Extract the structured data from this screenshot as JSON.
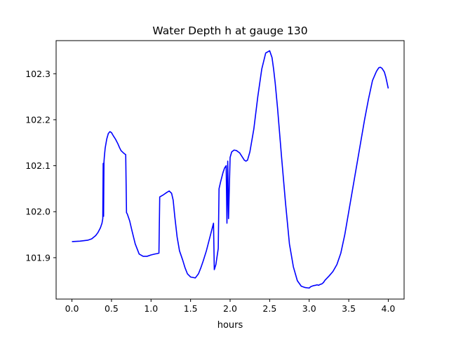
{
  "chart_data": {
    "type": "line",
    "title": "Water Depth h at gauge 130",
    "xlabel": "hours",
    "ylabel": "",
    "xlim": [
      -0.2,
      4.2
    ],
    "ylim": [
      101.81,
      102.372
    ],
    "xticks": [
      0.0,
      0.5,
      1.0,
      1.5,
      2.0,
      2.5,
      3.0,
      3.5,
      4.0
    ],
    "xtick_labels": [
      "0.0",
      "0.5",
      "1.0",
      "1.5",
      "2.0",
      "2.5",
      "3.0",
      "3.5",
      "4.0"
    ],
    "yticks": [
      101.9,
      102.0,
      102.1,
      102.2,
      102.3
    ],
    "ytick_labels": [
      "101.9",
      "102.0",
      "102.1",
      "102.2",
      "102.3"
    ],
    "grid": false,
    "series": [
      {
        "color": "#0000ff",
        "x": [
          0.0,
          0.1,
          0.2,
          0.25,
          0.3,
          0.33,
          0.36,
          0.38,
          0.39,
          0.395,
          0.4,
          0.405,
          0.41,
          0.42,
          0.44,
          0.46,
          0.48,
          0.5,
          0.52,
          0.55,
          0.58,
          0.6,
          0.62,
          0.65,
          0.68,
          0.69,
          0.7,
          0.73,
          0.76,
          0.8,
          0.85,
          0.9,
          0.95,
          1.0,
          1.05,
          1.08,
          1.1,
          1.11,
          1.15,
          1.2,
          1.23,
          1.26,
          1.28,
          1.3,
          1.33,
          1.36,
          1.4,
          1.43,
          1.46,
          1.5,
          1.53,
          1.56,
          1.6,
          1.63,
          1.66,
          1.7,
          1.73,
          1.76,
          1.79,
          1.8,
          1.82,
          1.85,
          1.86,
          1.88,
          1.91,
          1.93,
          1.95,
          1.96,
          1.97,
          1.98,
          2.0,
          2.02,
          2.05,
          2.08,
          2.12,
          2.15,
          2.18,
          2.2,
          2.22,
          2.25,
          2.3,
          2.35,
          2.4,
          2.45,
          2.5,
          2.53,
          2.55,
          2.57,
          2.6,
          2.65,
          2.7,
          2.75,
          2.8,
          2.85,
          2.9,
          2.95,
          3.0,
          3.02,
          3.05,
          3.08,
          3.1,
          3.12,
          3.14,
          3.16,
          3.18,
          3.2,
          3.25,
          3.3,
          3.35,
          3.4,
          3.45,
          3.5,
          3.55,
          3.6,
          3.65,
          3.7,
          3.75,
          3.8,
          3.85,
          3.88,
          3.9,
          3.92,
          3.95,
          3.97,
          4.0
        ],
        "y": [
          101.935,
          101.936,
          101.938,
          101.941,
          101.948,
          101.955,
          101.965,
          101.975,
          101.985,
          102.105,
          101.99,
          102.108,
          102.12,
          102.138,
          102.158,
          102.17,
          102.174,
          102.172,
          102.166,
          102.158,
          102.148,
          102.14,
          102.133,
          102.128,
          102.124,
          101.998,
          101.995,
          101.98,
          101.958,
          101.93,
          101.908,
          101.903,
          101.903,
          101.906,
          101.908,
          101.909,
          101.91,
          102.032,
          102.036,
          102.042,
          102.045,
          102.04,
          102.025,
          101.99,
          101.945,
          101.915,
          101.895,
          101.878,
          101.865,
          101.858,
          101.857,
          101.856,
          101.865,
          101.878,
          101.893,
          101.915,
          101.935,
          101.955,
          101.975,
          101.874,
          101.885,
          101.92,
          102.05,
          102.065,
          102.085,
          102.095,
          102.1,
          101.975,
          102.11,
          101.985,
          102.118,
          102.13,
          102.134,
          102.133,
          102.128,
          102.12,
          102.112,
          102.11,
          102.112,
          102.13,
          102.18,
          102.25,
          102.31,
          102.345,
          102.35,
          102.335,
          102.31,
          102.28,
          102.225,
          102.12,
          102.02,
          101.93,
          101.88,
          101.85,
          101.838,
          101.835,
          101.834,
          101.837,
          101.839,
          101.84,
          101.841,
          101.84,
          101.842,
          101.843,
          101.846,
          101.851,
          101.86,
          101.87,
          101.885,
          101.91,
          101.95,
          102.0,
          102.05,
          102.1,
          102.15,
          102.2,
          102.245,
          102.285,
          102.305,
          102.313,
          102.314,
          102.312,
          102.304,
          102.292,
          102.268
        ]
      }
    ]
  }
}
